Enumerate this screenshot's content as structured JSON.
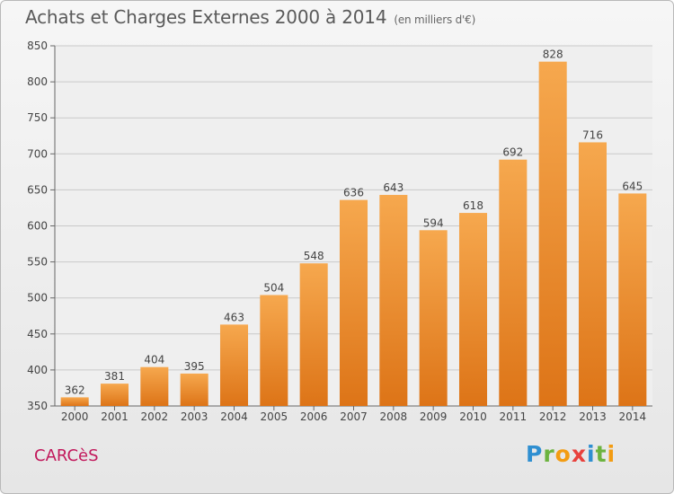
{
  "chart_data": {
    "type": "bar",
    "title": "Achats et Charges Externes 2000 à 2014",
    "subtitle": "(en milliers d'€)",
    "categories": [
      "2000",
      "2001",
      "2002",
      "2003",
      "2004",
      "2005",
      "2006",
      "2007",
      "2008",
      "2009",
      "2010",
      "2011",
      "2012",
      "2013",
      "2014"
    ],
    "values": [
      362,
      381,
      404,
      395,
      463,
      504,
      548,
      636,
      643,
      594,
      618,
      692,
      828,
      716,
      645
    ],
    "ylim": [
      350,
      850
    ],
    "yticks": [
      350,
      400,
      450,
      500,
      550,
      600,
      650,
      700,
      750,
      800,
      850
    ],
    "grid": true,
    "bar_color": "#f0922e"
  },
  "footer": {
    "commune": "CARCèS",
    "logo_letters": [
      {
        "ch": "P",
        "color": "#2f8fd1"
      },
      {
        "ch": "r",
        "color": "#6cb33f"
      },
      {
        "ch": "o",
        "color": "#f39c12"
      },
      {
        "ch": "x",
        "color": "#e8413c"
      },
      {
        "ch": "i",
        "color": "#2f8fd1"
      },
      {
        "ch": "t",
        "color": "#6cb33f"
      },
      {
        "ch": "i",
        "color": "#f39c12"
      }
    ]
  }
}
